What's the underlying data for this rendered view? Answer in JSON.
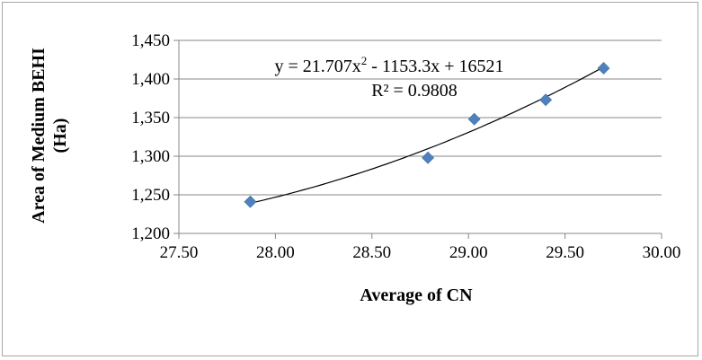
{
  "chart_data": {
    "type": "scatter",
    "xlabel": "Average of CN",
    "ylabel": "Area of Medium BEHI (Ha)",
    "xlim": [
      27.5,
      30.0
    ],
    "ylim": [
      1200,
      1450
    ],
    "x_ticks": [
      "27.50",
      "28.00",
      "28.50",
      "29.00",
      "29.50",
      "30.00"
    ],
    "y_ticks": [
      "1,200",
      "1,250",
      "1,300",
      "1,350",
      "1,400",
      "1,450"
    ],
    "grid": "horizontal",
    "marker_color": "#4f81bd",
    "points": [
      {
        "x": 27.87,
        "y": 1241
      },
      {
        "x": 28.79,
        "y": 1298
      },
      {
        "x": 29.03,
        "y": 1348
      },
      {
        "x": 29.4,
        "y": 1373
      },
      {
        "x": 29.7,
        "y": 1414
      }
    ],
    "trendline": {
      "type": "polynomial",
      "coefficients": [
        21.707,
        -1153.3,
        16521
      ],
      "equation_parts": {
        "a": "y = 21.707x",
        "sup": "2",
        "b": " - 1153.3x + 16521"
      },
      "r_squared_label": "R² = 0.9808"
    }
  }
}
